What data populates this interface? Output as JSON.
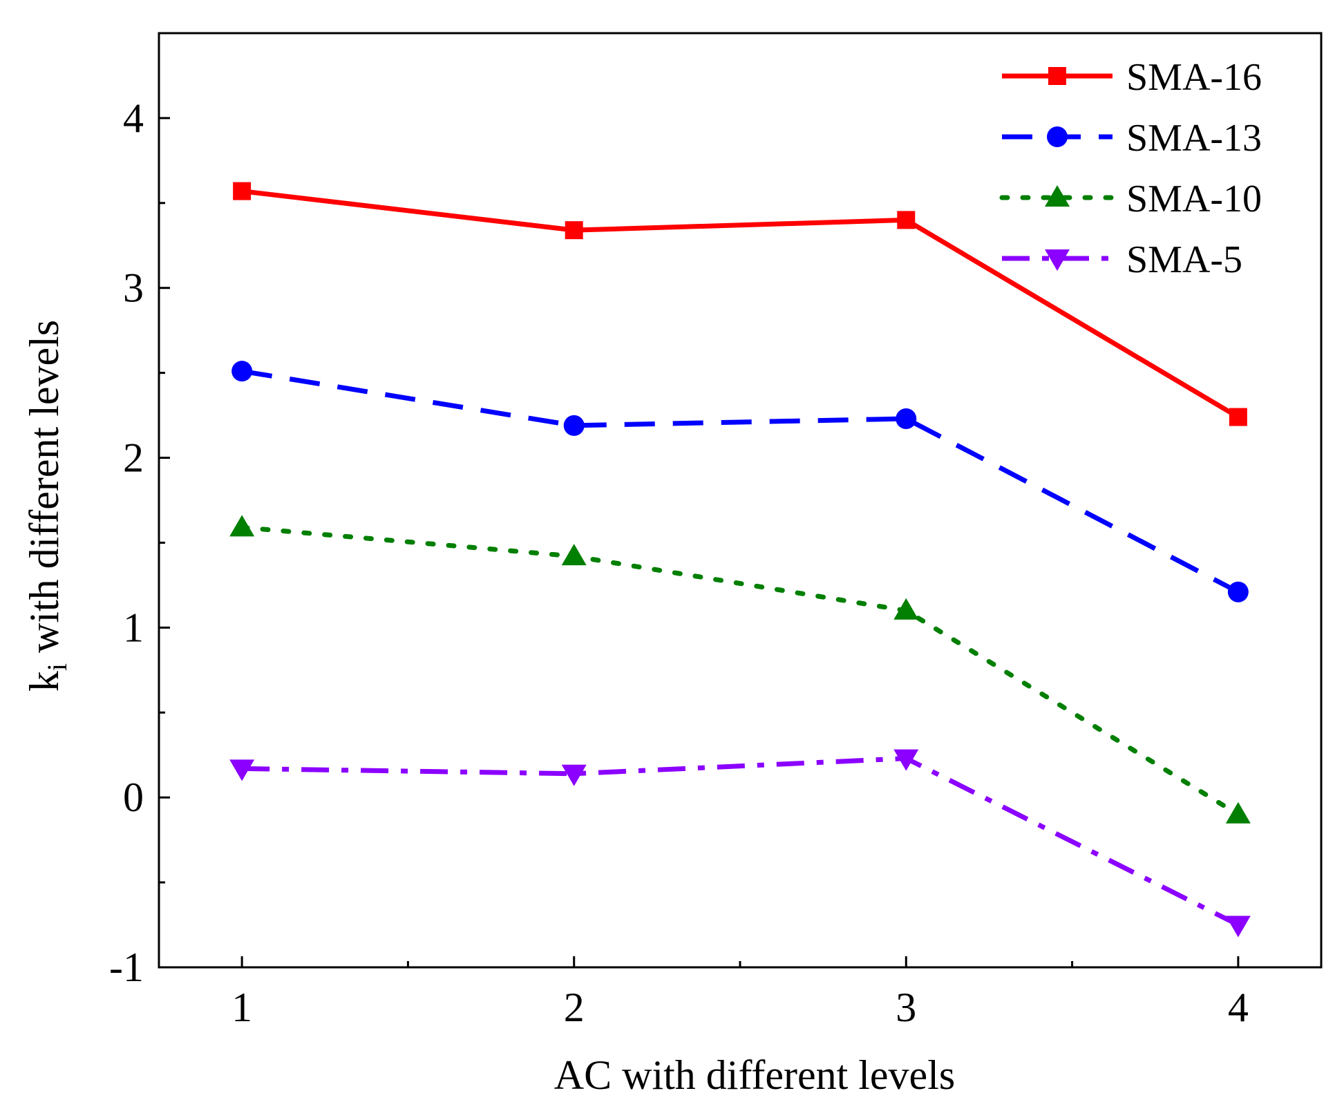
{
  "chart_data": {
    "type": "line",
    "title": "",
    "xlabel": "AC with different levels",
    "ylabel_main": "k",
    "ylabel_sub": "i",
    "ylabel_rest": " with different levels",
    "x": [
      1,
      2,
      3,
      4
    ],
    "x_tick_labels": [
      "1",
      "2",
      "3",
      "4"
    ],
    "xlim": [
      0.75,
      4.25
    ],
    "ylim": [
      -1,
      4.5
    ],
    "y_major_ticks": [
      -1,
      0,
      1,
      2,
      3,
      4
    ],
    "y_tick_labels": [
      "-1",
      "0",
      "1",
      "2",
      "3",
      "4"
    ],
    "grid": false,
    "legend_position": "top-right",
    "series": [
      {
        "name": "SMA-16",
        "values": [
          3.57,
          3.34,
          3.4,
          2.24
        ],
        "color": "#ff0000",
        "line_style": "solid",
        "marker": "square"
      },
      {
        "name": "SMA-13",
        "values": [
          2.51,
          2.19,
          2.23,
          1.21
        ],
        "color": "#0000ff",
        "line_style": "dash",
        "marker": "circle"
      },
      {
        "name": "SMA-10",
        "values": [
          1.59,
          1.42,
          1.1,
          -0.1
        ],
        "color": "#007f00",
        "line_style": "dot",
        "marker": "triangle-up"
      },
      {
        "name": "SMA-5",
        "values": [
          0.17,
          0.14,
          0.23,
          -0.75
        ],
        "color": "#8b00ff",
        "line_style": "dash-dot",
        "marker": "triangle-down"
      }
    ]
  }
}
